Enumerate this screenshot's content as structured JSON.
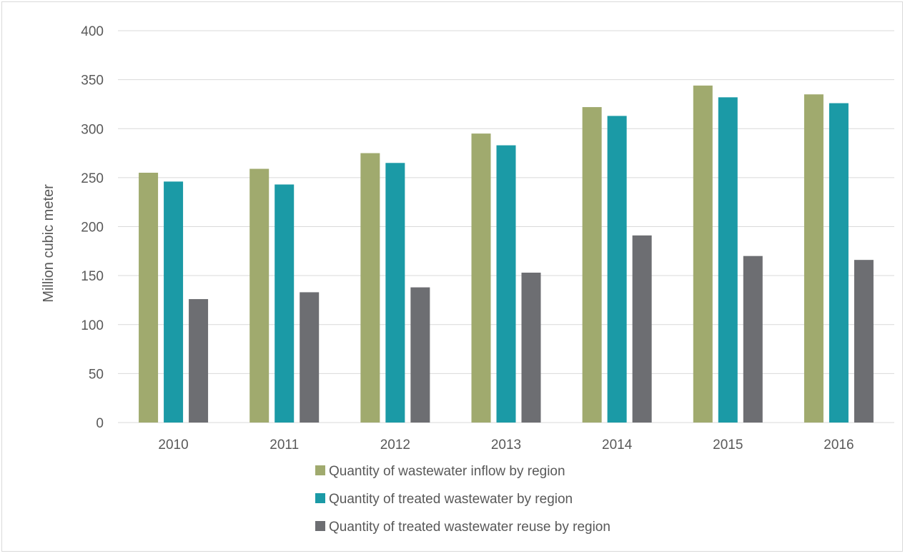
{
  "chart_data": {
    "type": "bar",
    "title": "",
    "xlabel": "",
    "ylabel": "Million cubic meter",
    "ylim": [
      0,
      400
    ],
    "yticks": [
      0,
      50,
      100,
      150,
      200,
      250,
      300,
      350,
      400
    ],
    "grid": true,
    "legend_position": "bottom",
    "categories": [
      "2010",
      "2011",
      "2012",
      "2013",
      "2014",
      "2015",
      "2016"
    ],
    "series": [
      {
        "name": "Quantity of wastewater inflow by region",
        "color": "#A0AA6E",
        "values": [
          255,
          259,
          275,
          295,
          322,
          344,
          335
        ]
      },
      {
        "name": "Quantity of treated wastewater by region",
        "color": "#1B9AA6",
        "values": [
          246,
          243,
          265,
          283,
          313,
          332,
          326
        ]
      },
      {
        "name": "Quantity of treated wastewater reuse by region",
        "color": "#6D6E72",
        "values": [
          126,
          133,
          138,
          153,
          191,
          170,
          166
        ]
      }
    ]
  }
}
